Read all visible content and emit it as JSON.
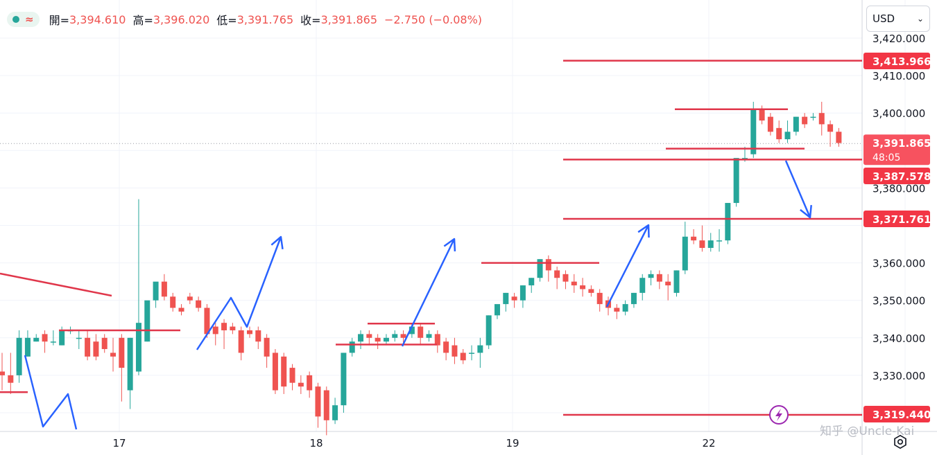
{
  "legend": {
    "status_color": "#26a69a",
    "wave_icon": "≈",
    "open_label": "開=",
    "open": "3,394.610",
    "high_label": "高=",
    "high": "3,396.020",
    "low_label": "低=",
    "low": "3,391.765",
    "close_label": "收=",
    "close": "3,391.865",
    "change": "−2.750 (−0.08%)"
  },
  "currency_select": {
    "value": "USD",
    "icon": "chevron-down-icon"
  },
  "watermark": "知乎 @Uncle-Kai",
  "settings_icon": "gear-icon",
  "chart_data": {
    "type": "candlestick",
    "y_axis": {
      "range": [
        3314,
        3424
      ],
      "ticks": [
        3330,
        3340,
        3350,
        3360,
        3380,
        3400,
        3410,
        3420
      ],
      "tick_labels": [
        "3,330.000",
        "3,340.000",
        "3,350.000",
        "3,360.000",
        "3,380.000",
        "3,400.000",
        "3,410.000",
        "3,420.000"
      ]
    },
    "x_axis": {
      "tick_labels": [
        "17",
        "18",
        "19",
        "22"
      ]
    },
    "candles": [
      [
        3331,
        3336,
        3330,
        3326
      ],
      [
        3330,
        3336,
        3328,
        3325
      ],
      [
        3330,
        3342,
        3340,
        3328
      ],
      [
        3335,
        3342,
        3340,
        3335
      ],
      [
        3339,
        3341,
        3340,
        3339
      ],
      [
        3341,
        3342,
        3339,
        3336
      ],
      [
        3339,
        3342,
        3339,
        3338
      ],
      [
        3338,
        3343,
        3342,
        3338
      ],
      [
        3342,
        3343,
        3342,
        3341
      ],
      [
        3340,
        3342,
        3340,
        3337
      ],
      [
        3340,
        3342,
        3335,
        3334
      ],
      [
        3339,
        3341,
        3335,
        3334
      ],
      [
        3340,
        3341,
        3337,
        3336
      ],
      [
        3336,
        3340,
        3335,
        3331
      ],
      [
        3340,
        3341,
        3332,
        3323
      ],
      [
        3326,
        3340,
        3340,
        3321
      ],
      [
        3331,
        3377,
        3344,
        3330
      ],
      [
        3339,
        3348,
        3350,
        3339
      ],
      [
        3350,
        3353,
        3355,
        3348
      ],
      [
        3355,
        3357,
        3351,
        3350
      ],
      [
        3351,
        3352,
        3348,
        3347
      ],
      [
        3348,
        3349,
        3347,
        3346
      ],
      [
        3351,
        3352,
        3350,
        3349
      ],
      [
        3350,
        3351,
        3348,
        3347
      ],
      [
        3348,
        3349,
        3341,
        3340
      ],
      [
        3343,
        3344,
        3341,
        3338
      ],
      [
        3344,
        3345,
        3342,
        3337
      ],
      [
        3343,
        3344,
        3342,
        3341
      ],
      [
        3342,
        3343,
        3336,
        3334
      ],
      [
        3342,
        3343,
        3341,
        3340
      ],
      [
        3342,
        3343,
        3339,
        3337
      ],
      [
        3340,
        3341,
        3335,
        3332
      ],
      [
        3336,
        3337,
        3326,
        3325
      ],
      [
        3335,
        3336,
        3327,
        3325
      ],
      [
        3332,
        3333,
        3328,
        3326
      ],
      [
        3328,
        3330,
        3327,
        3325
      ],
      [
        3330,
        3331,
        3326,
        3324
      ],
      [
        3327,
        3328,
        3319,
        3316
      ],
      [
        3326,
        3327,
        3318,
        3314
      ],
      [
        3318,
        3324,
        3322,
        3317
      ],
      [
        3322,
        3336,
        3336,
        3320
      ],
      [
        3336,
        3340,
        3339,
        3335
      ],
      [
        3339,
        3342,
        3341,
        3337
      ],
      [
        3341,
        3342,
        3340,
        3338
      ],
      [
        3340,
        3341,
        3339,
        3337
      ],
      [
        3339,
        3341,
        3340,
        3338
      ],
      [
        3340,
        3342,
        3341,
        3339
      ],
      [
        3341,
        3342,
        3340,
        3338
      ],
      [
        3341,
        3344,
        3343,
        3340
      ],
      [
        3343,
        3344,
        3340,
        3338
      ],
      [
        3340,
        3342,
        3341,
        3339
      ],
      [
        3341,
        3342,
        3338,
        3336
      ],
      [
        3339,
        3340,
        3336,
        3334
      ],
      [
        3338,
        3340,
        3335,
        3333
      ],
      [
        3336,
        3337,
        3334,
        3333
      ],
      [
        3336,
        3338,
        3336,
        3334
      ],
      [
        3336,
        3340,
        3338,
        3332
      ],
      [
        3338,
        3346,
        3346,
        3337
      ],
      [
        3346,
        3348,
        3349,
        3345
      ],
      [
        3349,
        3352,
        3352,
        3347
      ],
      [
        3351,
        3352,
        3350,
        3348
      ],
      [
        3350,
        3354,
        3354,
        3348
      ],
      [
        3354,
        3356,
        3356,
        3352
      ],
      [
        3356,
        3361,
        3361,
        3355
      ],
      [
        3361,
        3362,
        3358,
        3355
      ],
      [
        3358,
        3359,
        3356,
        3353
      ],
      [
        3357,
        3358,
        3355,
        3353
      ],
      [
        3355,
        3357,
        3354,
        3352
      ],
      [
        3354,
        3356,
        3353,
        3351
      ],
      [
        3353,
        3354,
        3352,
        3351
      ],
      [
        3352,
        3353,
        3349,
        3347
      ],
      [
        3350,
        3351,
        3348,
        3346
      ],
      [
        3348,
        3349,
        3347,
        3345
      ],
      [
        3347,
        3350,
        3349,
        3346
      ],
      [
        3349,
        3352,
        3352,
        3348
      ],
      [
        3352,
        3357,
        3356,
        3350
      ],
      [
        3356,
        3358,
        3357,
        3354
      ],
      [
        3357,
        3358,
        3355,
        3353
      ],
      [
        3355,
        3357,
        3354,
        3350
      ],
      [
        3352,
        3358,
        3358,
        3351
      ],
      [
        3358,
        3371,
        3367,
        3357
      ],
      [
        3367,
        3369,
        3366,
        3365
      ],
      [
        3366,
        3370,
        3364,
        3363
      ],
      [
        3364,
        3368,
        3366,
        3363
      ],
      [
        3366,
        3369,
        3366,
        3363
      ],
      [
        3366,
        3376,
        3376,
        3365
      ],
      [
        3376,
        3381,
        3388,
        3375
      ],
      [
        3388,
        3391,
        3388,
        3387
      ],
      [
        3389,
        3403,
        3401,
        3388
      ],
      [
        3401,
        3402,
        3398,
        3397
      ],
      [
        3399,
        3400,
        3395,
        3394
      ],
      [
        3396,
        3398,
        3393,
        3392
      ],
      [
        3393,
        3398,
        3395,
        3392
      ],
      [
        3395,
        3399,
        3399,
        3394
      ],
      [
        3399,
        3400,
        3397,
        3396
      ],
      [
        3399,
        3400,
        3399,
        3398
      ],
      [
        3400,
        3403,
        3397,
        3394
      ],
      [
        3397,
        3398,
        3395,
        3391
      ],
      [
        3395,
        3396,
        3392,
        3391
      ]
    ],
    "current_price_line": 3391.865,
    "horizontal_lines": [
      {
        "price": 3413.966,
        "label": "3,413.966"
      },
      {
        "price": 3387.578,
        "label": "3,387.578"
      },
      {
        "price": 3371.761,
        "label": "3,371.761"
      },
      {
        "price": 3319.44,
        "label": "3,319.440"
      },
      {
        "price": 3401
      },
      {
        "price": 3390.5
      },
      {
        "price": 3360
      },
      {
        "price": 3343.8
      },
      {
        "price": 3338.2
      },
      {
        "price": 3342
      },
      {
        "price": 3325.5
      }
    ],
    "price_tags": [
      {
        "label": "3,413.966",
        "color": "#f23645"
      },
      {
        "label": "3,391.865",
        "sub": "48:05",
        "color": "#f7525f"
      },
      {
        "label": "3,387.578",
        "color": "#f23645"
      },
      {
        "label": "3,371.761",
        "color": "#f23645"
      },
      {
        "label": "3,319.440",
        "color": "#f23645"
      }
    ],
    "colors": {
      "up": "#26a69a",
      "down": "#ef5350",
      "level": "#e0364a",
      "arrow": "#2962ff"
    }
  }
}
